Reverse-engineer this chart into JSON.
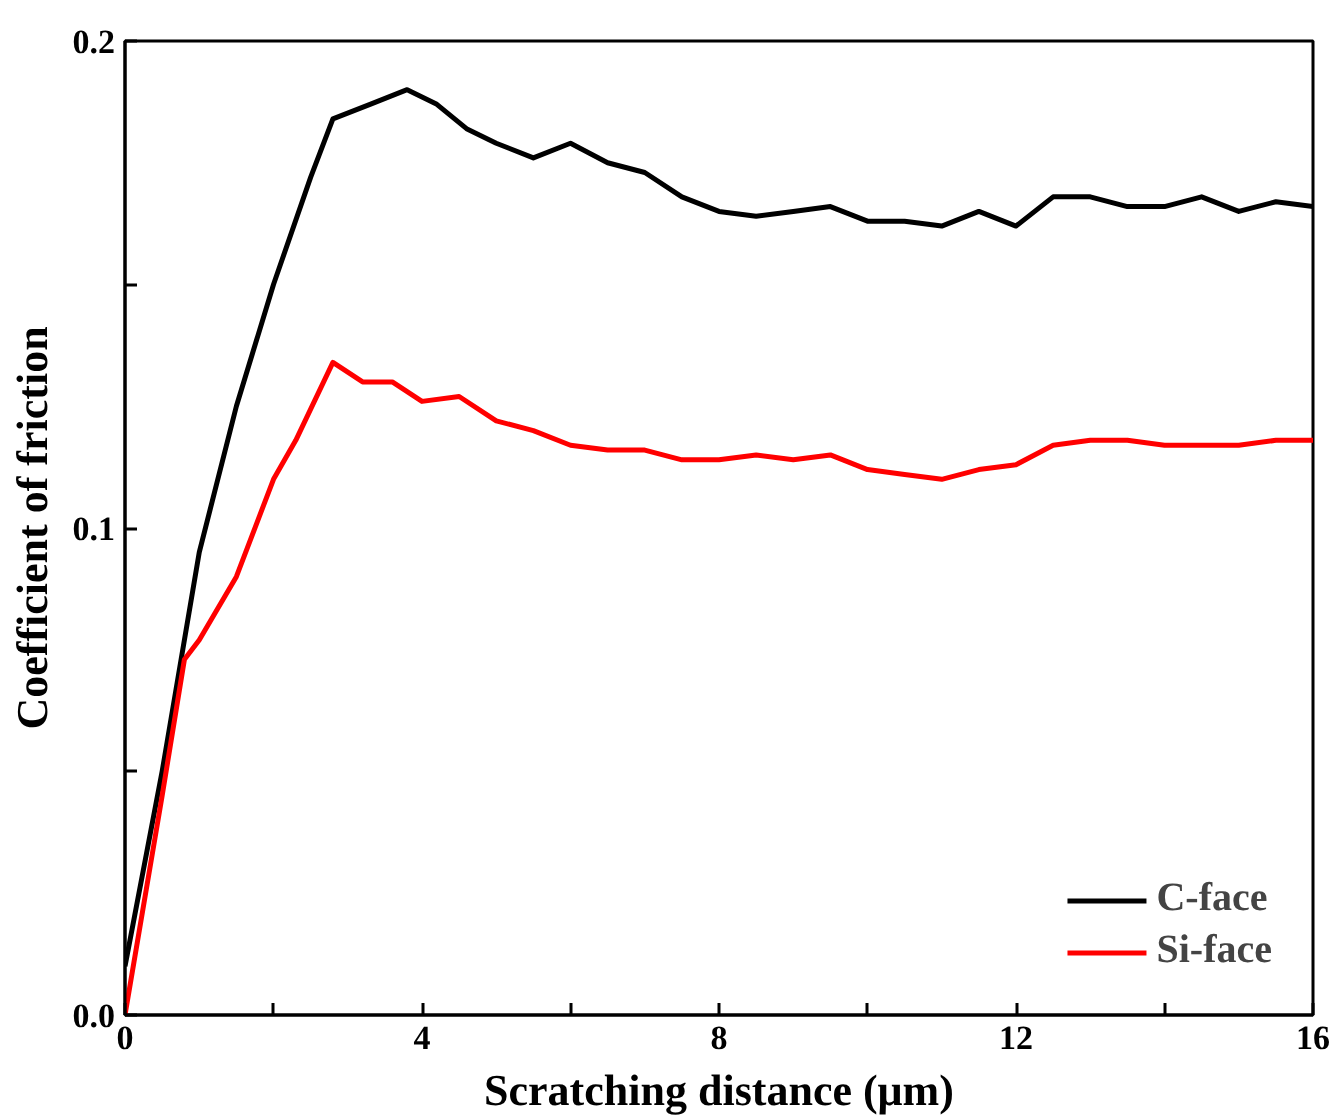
{
  "chart_data": {
    "type": "line",
    "xlabel": "Scratching distance (μm)",
    "ylabel": "Coefficient of friction",
    "xlim": [
      0,
      16
    ],
    "ylim": [
      0,
      0.2
    ],
    "xticks": [
      0,
      {
        "value": 2,
        "label": null
      },
      4,
      {
        "value": 6,
        "label": null
      },
      8,
      {
        "value": 10,
        "label": null
      },
      12,
      {
        "value": 14,
        "label": null
      },
      16
    ],
    "yticks": [
      {
        "value": 0,
        "label": "0.0"
      },
      {
        "value": 0.05,
        "label": null
      },
      0.1,
      {
        "value": 0.15,
        "label": null
      },
      0.2
    ],
    "grid": false,
    "legend": "bottom right",
    "line_style": "solid",
    "marker": "none",
    "series": [
      {
        "name": "C-face",
        "color": "#000000",
        "x": [
          0,
          0.5,
          1,
          1.5,
          2,
          2.5,
          2.8,
          3.3,
          3.8,
          4.2,
          4.6,
          5,
          5.5,
          6,
          6.5,
          7,
          7.5,
          8,
          8.5,
          9,
          9.5,
          10,
          10.5,
          11,
          11.5,
          12,
          12.5,
          13,
          13.5,
          14,
          14.5,
          15,
          15.5,
          16
        ],
        "values": [
          0.01,
          0.05,
          0.095,
          0.125,
          0.15,
          0.172,
          0.184,
          0.187,
          0.19,
          0.187,
          0.182,
          0.179,
          0.176,
          0.179,
          0.175,
          0.173,
          0.168,
          0.165,
          0.164,
          0.165,
          0.166,
          0.163,
          0.163,
          0.162,
          0.165,
          0.162,
          0.168,
          0.168,
          0.166,
          0.166,
          0.168,
          0.165,
          0.167,
          0.166
        ]
      },
      {
        "name": "Si-face",
        "color": "#ff0000",
        "x": [
          0,
          0.5,
          0.8,
          1,
          1.5,
          2,
          2.3,
          2.8,
          3.2,
          3.6,
          4,
          4.5,
          5,
          5.5,
          6,
          6.5,
          7,
          7.5,
          8,
          8.5,
          9,
          9.5,
          10,
          10.5,
          11,
          11.5,
          12,
          12.5,
          13,
          13.5,
          14,
          14.5,
          15,
          15.5,
          16
        ],
        "values": [
          0,
          0.045,
          0.073,
          0.077,
          0.09,
          0.11,
          0.118,
          0.134,
          0.13,
          0.13,
          0.126,
          0.127,
          0.122,
          0.12,
          0.117,
          0.116,
          0.116,
          0.114,
          0.114,
          0.115,
          0.114,
          0.115,
          0.112,
          0.111,
          0.11,
          0.112,
          0.113,
          0.117,
          0.118,
          0.118,
          0.117,
          0.117,
          0.117,
          0.118,
          0.118
        ]
      }
    ]
  }
}
